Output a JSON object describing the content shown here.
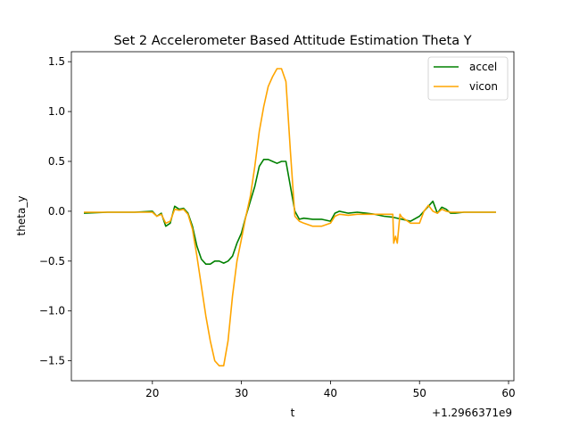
{
  "chart_data": {
    "type": "line",
    "title": "Set 2 Accelerometer Based Attitude Estimation Theta Y",
    "xlabel": "t",
    "ylabel": "theta_y",
    "x_offset_label": "+1.2966371e9",
    "xlim": [
      10.9,
      60.6
    ],
    "ylim": [
      -1.7,
      1.6
    ],
    "xticks": [
      20,
      30,
      40,
      50,
      60
    ],
    "yticks": [
      -1.5,
      -1.0,
      -0.5,
      0.0,
      0.5,
      1.0,
      1.5
    ],
    "ytick_labels": [
      "−1.5",
      "−1.0",
      "−0.5",
      "0.0",
      "0.5",
      "1.0",
      "1.5"
    ],
    "grid": false,
    "legend_position": "top-right",
    "series": [
      {
        "name": "accel",
        "color": "#008000",
        "x": [
          12.3,
          15,
          18,
          20,
          20.5,
          21,
          21.5,
          22,
          22.5,
          23,
          23.5,
          24,
          24.5,
          25,
          25.5,
          26,
          26.5,
          27,
          27.5,
          28,
          28.5,
          29,
          29.5,
          30,
          30.5,
          31,
          31.5,
          32,
          32.5,
          33,
          33.5,
          34,
          34.5,
          35,
          35.5,
          36,
          36.5,
          37,
          38,
          39,
          40,
          40.5,
          41,
          42,
          43,
          44,
          45,
          46,
          47,
          48,
          49,
          50,
          50.5,
          51,
          51.5,
          52,
          52.5,
          53,
          53.5,
          54,
          55,
          56,
          57,
          58.6
        ],
        "y": [
          -0.02,
          -0.01,
          -0.01,
          0.0,
          -0.05,
          -0.02,
          -0.15,
          -0.12,
          0.05,
          0.02,
          0.03,
          -0.02,
          -0.15,
          -0.35,
          -0.48,
          -0.53,
          -0.53,
          -0.5,
          -0.5,
          -0.52,
          -0.5,
          -0.45,
          -0.32,
          -0.22,
          -0.05,
          0.1,
          0.25,
          0.45,
          0.52,
          0.52,
          0.5,
          0.48,
          0.5,
          0.5,
          0.25,
          0.0,
          -0.08,
          -0.07,
          -0.08,
          -0.08,
          -0.1,
          -0.02,
          0.0,
          -0.02,
          -0.01,
          -0.02,
          -0.03,
          -0.05,
          -0.06,
          -0.08,
          -0.1,
          -0.05,
          0.0,
          0.05,
          0.1,
          -0.02,
          0.04,
          0.02,
          -0.02,
          -0.02,
          -0.01,
          -0.01,
          -0.01,
          -0.01
        ]
      },
      {
        "name": "vicon",
        "color": "#ffa500",
        "x": [
          12.3,
          15,
          18,
          20,
          20.5,
          21,
          21.5,
          22,
          22.5,
          23,
          23.5,
          24,
          24.5,
          25,
          25.5,
          26,
          26.5,
          27,
          27.5,
          28,
          28.5,
          29,
          29.5,
          30,
          30.5,
          31,
          31.5,
          32,
          32.5,
          33,
          33.5,
          34,
          34.5,
          35,
          35.5,
          36,
          36.5,
          37,
          38,
          39,
          40,
          40.5,
          41,
          42,
          43,
          44,
          45,
          46,
          47,
          47.1,
          47.3,
          47.5,
          47.8,
          48,
          49,
          50,
          50.5,
          51,
          51.5,
          52,
          52.5,
          53,
          53.5,
          54,
          55,
          56,
          57,
          58.6
        ],
        "y": [
          -0.01,
          -0.01,
          -0.01,
          -0.01,
          -0.05,
          -0.03,
          -0.12,
          -0.1,
          0.02,
          0.01,
          0.02,
          -0.03,
          -0.18,
          -0.45,
          -0.75,
          -1.05,
          -1.3,
          -1.5,
          -1.55,
          -1.55,
          -1.3,
          -0.85,
          -0.5,
          -0.28,
          -0.05,
          0.15,
          0.45,
          0.8,
          1.05,
          1.25,
          1.35,
          1.43,
          1.43,
          1.3,
          0.6,
          -0.05,
          -0.1,
          -0.12,
          -0.15,
          -0.15,
          -0.12,
          -0.05,
          -0.03,
          -0.04,
          -0.03,
          -0.03,
          -0.03,
          -0.03,
          -0.03,
          -0.32,
          -0.25,
          -0.32,
          -0.03,
          -0.06,
          -0.12,
          -0.12,
          0.0,
          0.06,
          0.0,
          -0.02,
          0.02,
          0.0,
          -0.01,
          -0.01,
          -0.01,
          -0.01,
          -0.01,
          -0.01
        ]
      }
    ]
  }
}
